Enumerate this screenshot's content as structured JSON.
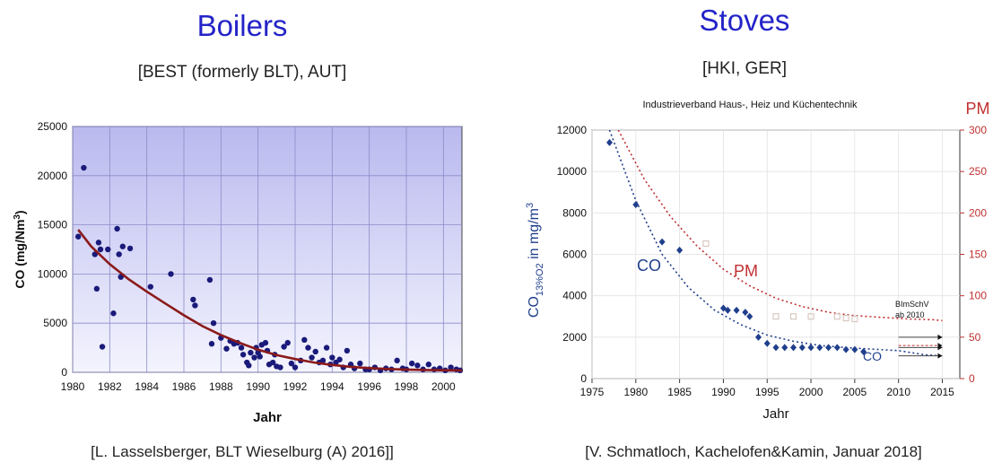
{
  "left": {
    "title": "Boilers",
    "subtitle": "[BEST (formerly BLT), AUT]",
    "source": "[L. Lasselsberger, BLT Wieselburg (A) 2016]]"
  },
  "right": {
    "title": "Stoves",
    "subtitle": "[HKI, GER]",
    "source": "[V. Schmatloch, Kachelofen&Kamin, Januar 2018]"
  },
  "chart_data": [
    {
      "type": "scatter",
      "title": "",
      "xlabel": "Jahr",
      "ylabel": "CO (mg/Nm3)",
      "xlim": [
        1980,
        2001
      ],
      "ylim": [
        0,
        25000
      ],
      "xticks": [
        "1980",
        "1982",
        "1984",
        "1986",
        "1988",
        "1990",
        "1992",
        "1994",
        "1996",
        "1998",
        "2000"
      ],
      "yticks": [
        "0",
        "5000",
        "10000",
        "15000",
        "20000",
        "25000"
      ],
      "grid": true,
      "colors": {
        "points": "#1a1a7a",
        "trend": "#8b1a1a",
        "bg_top": "#b9b9ef",
        "bg_bottom": "#f2f2fd"
      },
      "series": [
        {
          "kind": "points",
          "x": [
            1980.3,
            1980.6,
            1981.2,
            1981.3,
            1981.4,
            1981.5,
            1981.6,
            1981.9,
            1982.2,
            1982.4,
            1982.5,
            1982.6,
            1982.7,
            1983.1,
            1984.2,
            1985.3,
            1986.5,
            1986.6,
            1987.4,
            1987.5,
            1987.6,
            1988.0,
            1988.3,
            1988.5,
            1988.7,
            1988.9,
            1989.1,
            1989.2,
            1989.4,
            1989.5,
            1989.6,
            1989.8,
            1989.9,
            1990.0,
            1990.1,
            1990.2,
            1990.4,
            1990.5,
            1990.6,
            1990.8,
            1990.9,
            1991.0,
            1991.2,
            1991.4,
            1991.6,
            1991.8,
            1992.0,
            1992.3,
            1992.5,
            1992.7,
            1992.9,
            1993.1,
            1993.3,
            1993.5,
            1993.7,
            1993.9,
            1994.0,
            1994.2,
            1994.4,
            1994.6,
            1994.8,
            1995.0,
            1995.2,
            1995.5,
            1995.8,
            1996.0,
            1996.3,
            1996.6,
            1996.9,
            1997.2,
            1997.5,
            1997.8,
            1998.0,
            1998.3,
            1998.6,
            1998.9,
            1999.2,
            1999.5,
            1999.8,
            2000.1,
            2000.4,
            2000.7,
            2000.9
          ],
          "y": [
            13800,
            20800,
            12000,
            8500,
            13200,
            12500,
            2600,
            12500,
            6000,
            14600,
            12000,
            9700,
            12800,
            12600,
            8700,
            10000,
            7400,
            6800,
            9400,
            2900,
            5000,
            3500,
            2400,
            3200,
            2900,
            3000,
            2500,
            1800,
            1000,
            700,
            2000,
            1500,
            2500,
            2000,
            1600,
            2800,
            3000,
            2200,
            800,
            1000,
            1800,
            600,
            500,
            2600,
            3000,
            900,
            500,
            1200,
            3300,
            2500,
            1500,
            2100,
            1000,
            1200,
            2500,
            800,
            1500,
            1000,
            1300,
            500,
            2200,
            800,
            400,
            900,
            300,
            300,
            500,
            200,
            400,
            300,
            1200,
            400,
            300,
            900,
            700,
            300,
            800,
            300,
            400,
            200,
            500,
            300,
            200
          ]
        },
        {
          "kind": "trend",
          "x": [
            1980.3,
            1981,
            1982,
            1983,
            1984,
            1985,
            1986,
            1987,
            1988,
            1989,
            1990,
            1991,
            1992,
            1993,
            1994,
            1995,
            1996,
            1997,
            1998,
            1999,
            2000,
            2001
          ],
          "y": [
            14500,
            12800,
            11000,
            9500,
            8200,
            7000,
            5800,
            4700,
            3800,
            3000,
            2300,
            1750,
            1350,
            1000,
            750,
            560,
            430,
            340,
            280,
            240,
            210,
            190
          ]
        }
      ]
    },
    {
      "type": "line",
      "title": "Industrieverband Haus-, Heiz und Küchentechnik",
      "xlabel": "Jahr",
      "ylabel": "CO13%O2 in mg/m3",
      "ylabel_main": "CO",
      "ylabel_sub": "13%O2",
      "ylabel_rest": " in mg/m",
      "ylabel_sup": "3",
      "y2label": "PM",
      "xlim": [
        1975,
        2017
      ],
      "ylim": [
        0,
        12000
      ],
      "y2lim": [
        0,
        300
      ],
      "xticks": [
        "1975",
        "1980",
        "1985",
        "1990",
        "1995",
        "2000",
        "2005",
        "2010",
        "2015"
      ],
      "yticks": [
        "0",
        "2000",
        "4000",
        "6000",
        "8000",
        "10000",
        "12000"
      ],
      "y2ticks": [
        "0",
        "50",
        "100",
        "150",
        "200",
        "250",
        "300"
      ],
      "grid": true,
      "colors": {
        "co": "#1f3f8c",
        "pm": "#c03030",
        "pm_points": "#d8c8c0",
        "axis_right": "#c03030"
      },
      "annotations": [
        "CO",
        "PM",
        "CO",
        "BImSchV",
        "ab 2010"
      ],
      "series": [
        {
          "name": "CO",
          "kind": "points",
          "x": [
            1977,
            1980,
            1983,
            1985,
            1990,
            1990.5,
            1991.5,
            1992.5,
            1993,
            1994,
            1995,
            1996,
            1997,
            1998,
            1999,
            2000,
            2001,
            2002,
            2003,
            2004,
            2005,
            2006
          ],
          "y": [
            11400,
            8400,
            6600,
            6200,
            3400,
            3300,
            3300,
            3200,
            3000,
            2000,
            1700,
            1500,
            1500,
            1500,
            1500,
            1500,
            1500,
            1500,
            1500,
            1400,
            1400,
            1300
          ]
        },
        {
          "name": "CO trend",
          "kind": "trend",
          "x": [
            1977,
            1980,
            1983,
            1986,
            1989,
            1992,
            1995,
            1998,
            2001,
            2004,
            2007,
            2010,
            2013,
            2015
          ],
          "y": [
            12000,
            8600,
            6000,
            4400,
            3300,
            2600,
            2100,
            1800,
            1600,
            1500,
            1420,
            1350,
            1150,
            1100
          ]
        },
        {
          "name": "PM trend",
          "kind": "trend",
          "axis": "right",
          "x": [
            1978,
            1981,
            1984,
            1987,
            1990,
            1993,
            1996,
            1999,
            2002,
            2005,
            2008,
            2011,
            2014,
            2015
          ],
          "y": [
            300,
            240,
            195,
            160,
            132,
            112,
            97,
            87,
            80,
            76,
            74,
            72,
            71,
            70
          ]
        },
        {
          "name": "PM",
          "kind": "points",
          "axis": "right",
          "x": [
            1988,
            1996,
            1998,
            2000,
            2003,
            2004,
            2005
          ],
          "y": [
            163,
            75,
            75,
            75,
            75,
            73,
            72
          ]
        }
      ]
    }
  ]
}
